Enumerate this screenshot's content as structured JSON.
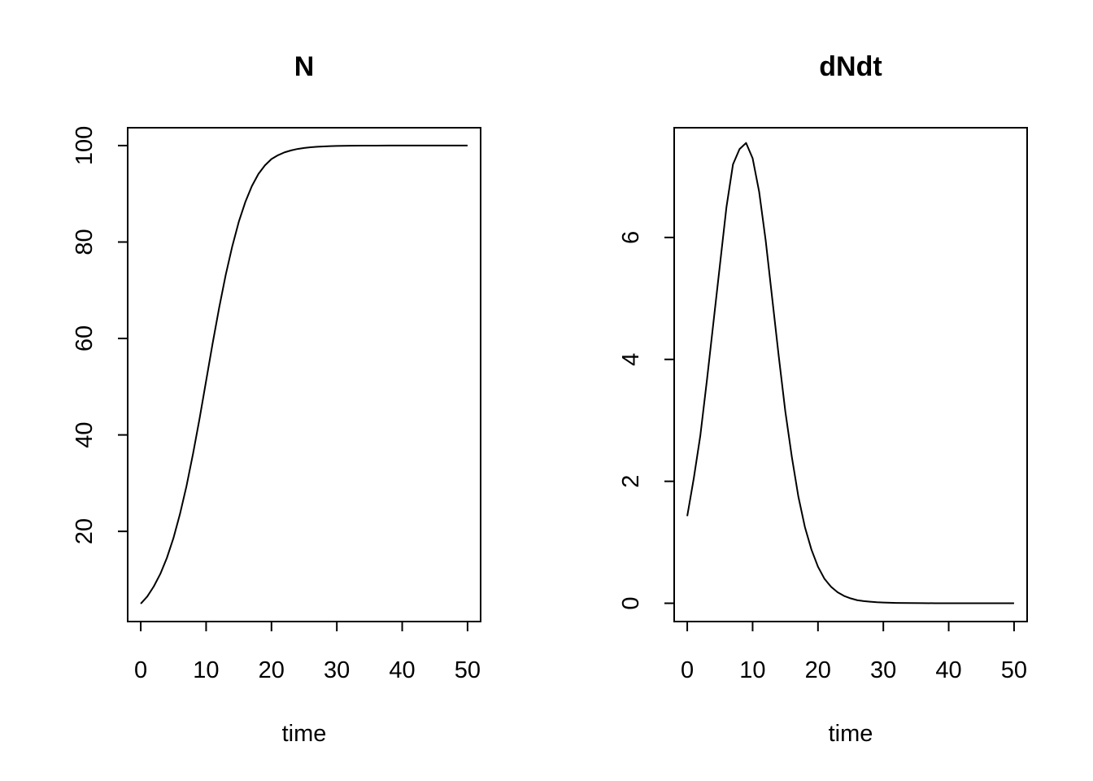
{
  "chart_data": [
    {
      "type": "line",
      "title": "N",
      "xlabel": "time",
      "ylabel": "",
      "xticks": [
        0,
        10,
        20,
        30,
        40,
        50
      ],
      "yticks": [
        20,
        40,
        60,
        80,
        100
      ],
      "xlim": [
        -2,
        52
      ],
      "ylim": [
        1.3,
        103.7
      ],
      "x": [
        0,
        1,
        2,
        3,
        4,
        5,
        6,
        7,
        8,
        9,
        10,
        11,
        12,
        13,
        14,
        15,
        16,
        17,
        18,
        19,
        20,
        21,
        22,
        23,
        24,
        25,
        26,
        27,
        28,
        29,
        30,
        32,
        34,
        36,
        38,
        40,
        42,
        44,
        46,
        48,
        50
      ],
      "y": [
        5.0,
        6.5,
        8.6,
        11.2,
        14.5,
        18.6,
        23.6,
        29.4,
        36.1,
        43.4,
        51.2,
        59.0,
        66.4,
        73.2,
        79.1,
        84.2,
        88.3,
        91.6,
        94.1,
        95.9,
        97.2,
        98.0,
        98.6,
        99.0,
        99.3,
        99.5,
        99.65,
        99.75,
        99.83,
        99.88,
        99.92,
        99.96,
        99.98,
        99.99,
        100.0,
        100.0,
        100.0,
        100.0,
        100.0,
        100.0,
        100.0
      ],
      "series": [
        {
          "values_key": "y"
        }
      ]
    },
    {
      "type": "line",
      "title": "dNdt",
      "xlabel": "time",
      "ylabel": "",
      "xticks": [
        0,
        10,
        20,
        30,
        40,
        50
      ],
      "yticks": [
        0,
        2,
        4,
        6
      ],
      "xlim": [
        -2,
        52
      ],
      "ylim": [
        -0.3,
        7.8
      ],
      "x": [
        0,
        1,
        2,
        3,
        4,
        5,
        6,
        7,
        8,
        9,
        10,
        11,
        12,
        13,
        14,
        15,
        16,
        17,
        18,
        19,
        20,
        21,
        22,
        23,
        24,
        25,
        26,
        27,
        28,
        29,
        30,
        32,
        34,
        36,
        38,
        40,
        42,
        44,
        46,
        48,
        50
      ],
      "y": [
        1.43,
        2.05,
        2.75,
        3.65,
        4.6,
        5.55,
        6.5,
        7.2,
        7.45,
        7.55,
        7.3,
        6.75,
        5.95,
        5.0,
        4.05,
        3.15,
        2.4,
        1.75,
        1.25,
        0.88,
        0.6,
        0.4,
        0.27,
        0.18,
        0.12,
        0.08,
        0.05,
        0.035,
        0.025,
        0.017,
        0.012,
        0.006,
        0.003,
        0.0015,
        0.0008,
        0.0004,
        0.0002,
        0.0001,
        0.0,
        0.0,
        0.0
      ],
      "series": [
        {
          "values_key": "y"
        }
      ]
    }
  ]
}
